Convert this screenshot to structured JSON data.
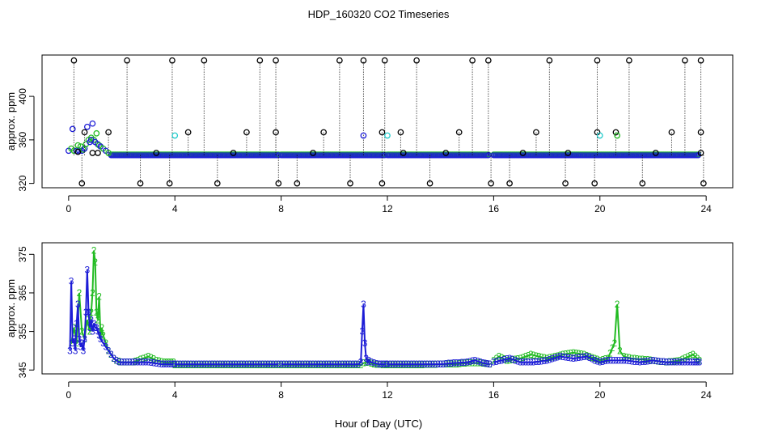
{
  "title": "HDP_160320  CO2 Timeseries",
  "xlabel": "Hour of Day (UTC)",
  "colors": {
    "black": "#000000",
    "blue": "#1c1cd6",
    "green": "#22bb22",
    "cyan": "#22cccc"
  },
  "chart_data": [
    {
      "type": "scatter",
      "ylabel": "approx. ppm",
      "xlim": [
        -1,
        25
      ],
      "ylim": [
        316,
        438
      ],
      "xticks": [
        0,
        4,
        8,
        12,
        16,
        20,
        24
      ],
      "yticks": [
        320,
        360,
        400
      ],
      "base": 346,
      "spikes_high": [
        0.2,
        2.2,
        3.9,
        5.1,
        7.2,
        7.8,
        10.2,
        11.1,
        11.9,
        13.1,
        15.2,
        15.8,
        18.1,
        19.9,
        21.1,
        23.2,
        23.8
      ],
      "spikes_mid": [
        0.6,
        1.5,
        4.5,
        6.7,
        7.8,
        9.6,
        11.8,
        12.5,
        14.7,
        17.6,
        19.9,
        20.6,
        22.7,
        23.8
      ],
      "spikes_low": [
        0.5,
        2.7,
        3.8,
        5.6,
        7.9,
        8.6,
        10.6,
        11.8,
        13.6,
        15.9,
        16.6,
        18.7,
        19.8,
        21.6,
        23.9
      ],
      "spikes_small": [
        0.9,
        3.3,
        6.2,
        9.2,
        12.6,
        14.2,
        17.1,
        18.8,
        22.1
      ]
    },
    {
      "type": "line",
      "ylabel": "approx. ppm",
      "xlim": [
        -1,
        25
      ],
      "ylim": [
        344,
        378
      ],
      "xticks": [
        0,
        4,
        8,
        12,
        16,
        20,
        24
      ],
      "yticks": [
        345,
        355,
        365,
        375
      ],
      "series": [
        {
          "marker": "3",
          "color": "blue",
          "x": [
            0.05,
            0.1,
            0.15,
            0.2,
            0.25,
            0.3,
            0.35,
            0.4,
            0.45,
            0.5,
            0.55,
            0.6,
            0.65,
            0.7,
            0.75,
            0.8,
            0.85,
            0.9,
            0.95,
            1.0,
            1.05,
            1.1,
            1.15,
            1.2,
            1.3,
            1.4,
            1.5,
            1.6,
            1.7,
            1.8,
            1.9,
            2.0,
            2.5,
            3.0,
            3.5,
            3.95
          ],
          "y": [
            350,
            368,
            352,
            353,
            350,
            357,
            362,
            353,
            351,
            352,
            350,
            353,
            360,
            371,
            360,
            356,
            358,
            355,
            357,
            356,
            356,
            355,
            354,
            353,
            352,
            351,
            350,
            349,
            348,
            347.5,
            347,
            347,
            347,
            347,
            346.5,
            346.5
          ]
        },
        {
          "marker": "2",
          "color": "green",
          "x": [
            0.1,
            0.2,
            0.3,
            0.4,
            0.5,
            0.6,
            0.7,
            0.8,
            0.85,
            0.9,
            0.95,
            1.0,
            1.05,
            1.1,
            1.15,
            1.2,
            1.25,
            1.3,
            1.4,
            1.5,
            1.6,
            1.7,
            1.8,
            2.0,
            2.4,
            2.8,
            3.0,
            3.3,
            3.6,
            3.95
          ],
          "y": [
            352,
            356,
            352,
            365,
            355,
            353,
            358,
            355,
            360,
            365,
            376,
            373,
            360,
            358,
            364,
            354,
            356,
            354,
            352,
            350,
            349,
            348,
            347.5,
            347,
            347,
            348,
            348.5,
            347.5,
            347,
            347
          ]
        },
        {
          "marker": "3",
          "color": "blue",
          "x": [
            4.0,
            5.0,
            6.0,
            7.0,
            7.9
          ],
          "y": [
            346.5,
            346.5,
            346.5,
            346.5,
            346.5
          ]
        },
        {
          "marker": "2",
          "color": "green",
          "x": [
            4.0,
            5.0,
            6.0,
            7.0,
            7.9
          ],
          "y": [
            346.3,
            346.3,
            346.3,
            346.3,
            346.3
          ]
        },
        {
          "marker": "3",
          "color": "blue",
          "x": [
            8.0,
            9.0,
            10.0,
            10.9,
            11.0,
            11.05,
            11.1,
            11.15,
            11.2,
            11.25,
            11.3,
            11.4,
            11.5,
            11.7,
            11.95
          ],
          "y": [
            346.5,
            346.5,
            346.5,
            346.5,
            347,
            355,
            362,
            352,
            348,
            347,
            347.5,
            347,
            346.8,
            346.5,
            346.5
          ]
        },
        {
          "marker": "2",
          "color": "green",
          "x": [
            8.0,
            9.0,
            10.0,
            11.0,
            11.1,
            11.3,
            11.5,
            11.95
          ],
          "y": [
            346.3,
            346.3,
            346.3,
            346.3,
            346.8,
            347,
            346.5,
            346.3
          ]
        },
        {
          "marker": "3",
          "color": "blue",
          "x": [
            12.0,
            13.0,
            14.0,
            14.5,
            15.0,
            15.3,
            15.6,
            15.85
          ],
          "y": [
            346.5,
            346.5,
            346.5,
            346.8,
            347,
            347.5,
            346.8,
            346.5
          ]
        },
        {
          "marker": "2",
          "color": "green",
          "x": [
            12.0,
            13.0,
            14.0,
            14.5,
            15.0,
            15.5,
            15.85
          ],
          "y": [
            346.3,
            346.3,
            346.5,
            346.5,
            346.8,
            346.8,
            346.5
          ]
        },
        {
          "marker": "3",
          "color": "blue",
          "x": [
            16.0,
            16.3,
            16.6,
            17.0,
            17.5,
            18.0,
            18.5,
            19.0,
            19.5,
            19.8,
            20.0,
            20.3,
            20.6,
            21.0,
            21.5,
            22.0,
            22.5,
            23.0,
            23.5,
            23.75
          ],
          "y": [
            347,
            347.5,
            348,
            347,
            347,
            347.5,
            348.5,
            348,
            348.5,
            347.5,
            347,
            347.5,
            347.5,
            347.5,
            347,
            347.5,
            347,
            347,
            347,
            347
          ]
        },
        {
          "marker": "2",
          "color": "green",
          "x": [
            16.0,
            16.2,
            16.5,
            17.0,
            17.4,
            18.0,
            18.3,
            18.6,
            19.0,
            19.4,
            19.8,
            20.0,
            20.3,
            20.55,
            20.65,
            20.75,
            20.9,
            21.2,
            22.0,
            22.5,
            23.0,
            23.5,
            23.75
          ],
          "y": [
            347.5,
            348.5,
            347.5,
            348,
            349,
            348,
            348.5,
            349,
            349.5,
            349,
            348,
            347.5,
            348,
            352,
            362,
            350,
            348.5,
            348,
            347.5,
            347,
            347.5,
            349,
            347.5
          ]
        }
      ]
    }
  ]
}
